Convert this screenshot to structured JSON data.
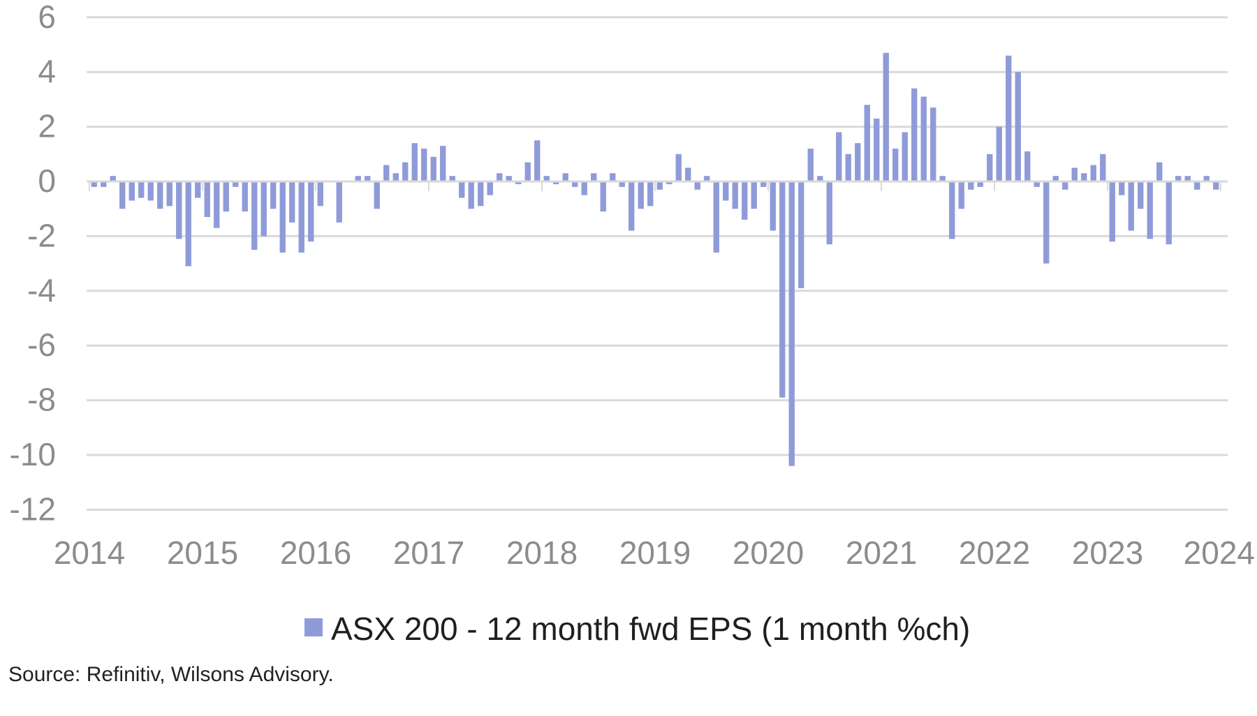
{
  "chart_data": {
    "type": "bar",
    "title": "",
    "xlabel": "",
    "ylabel": "",
    "ylim": [
      -12,
      6
    ],
    "yticks": [
      6,
      4,
      2,
      0,
      -2,
      -4,
      -6,
      -8,
      -10,
      -12
    ],
    "xlim": [
      2014,
      2024
    ],
    "xticks": [
      "2014",
      "2015",
      "2016",
      "2017",
      "2018",
      "2019",
      "2020",
      "2021",
      "2022",
      "2023",
      "2024"
    ],
    "grid": true,
    "legend_position": "bottom",
    "bar_color": "#8f9bd9",
    "series": [
      {
        "name": "ASX 200 - 12 month fwd EPS (1 month %ch)",
        "x": [
          "2014-01",
          "2014-02",
          "2014-03",
          "2014-04",
          "2014-05",
          "2014-06",
          "2014-07",
          "2014-08",
          "2014-09",
          "2014-10",
          "2014-11",
          "2014-12",
          "2015-01",
          "2015-02",
          "2015-03",
          "2015-04",
          "2015-05",
          "2015-06",
          "2015-07",
          "2015-08",
          "2015-09",
          "2015-10",
          "2015-11",
          "2015-12",
          "2016-01",
          "2016-02",
          "2016-03",
          "2016-04",
          "2016-05",
          "2016-06",
          "2016-07",
          "2016-08",
          "2016-09",
          "2016-10",
          "2016-11",
          "2016-12",
          "2017-01",
          "2017-02",
          "2017-03",
          "2017-04",
          "2017-05",
          "2017-06",
          "2017-07",
          "2017-08",
          "2017-09",
          "2017-10",
          "2017-11",
          "2017-12",
          "2018-01",
          "2018-02",
          "2018-03",
          "2018-04",
          "2018-05",
          "2018-06",
          "2018-07",
          "2018-08",
          "2018-09",
          "2018-10",
          "2018-11",
          "2018-12",
          "2019-01",
          "2019-02",
          "2019-03",
          "2019-04",
          "2019-05",
          "2019-06",
          "2019-07",
          "2019-08",
          "2019-09",
          "2019-10",
          "2019-11",
          "2019-12",
          "2020-01",
          "2020-02",
          "2020-03",
          "2020-04",
          "2020-05",
          "2020-06",
          "2020-07",
          "2020-08",
          "2020-09",
          "2020-10",
          "2020-11",
          "2020-12",
          "2021-01",
          "2021-02",
          "2021-03",
          "2021-04",
          "2021-05",
          "2021-06",
          "2021-07",
          "2021-08",
          "2021-09",
          "2021-10",
          "2021-11",
          "2021-12",
          "2022-01",
          "2022-02",
          "2022-03",
          "2022-04",
          "2022-05",
          "2022-06",
          "2022-07",
          "2022-08",
          "2022-09",
          "2022-10",
          "2022-11",
          "2022-12",
          "2023-01",
          "2023-02",
          "2023-03",
          "2023-04",
          "2023-05",
          "2023-06",
          "2023-07",
          "2023-08",
          "2023-09",
          "2023-10",
          "2023-11",
          "2023-12"
        ],
        "values": [
          -0.2,
          -0.2,
          0.2,
          -1.0,
          -0.7,
          -0.6,
          -0.7,
          -1.0,
          -0.9,
          -2.1,
          -3.1,
          -0.6,
          -1.3,
          -1.7,
          -1.1,
          -0.2,
          -1.1,
          -2.5,
          -2.0,
          -1.0,
          -2.6,
          -1.5,
          -2.6,
          -2.2,
          -0.9,
          0.0,
          -1.5,
          0.0,
          0.2,
          0.2,
          -1.0,
          0.6,
          0.3,
          0.7,
          1.4,
          1.2,
          0.9,
          1.3,
          0.2,
          -0.6,
          -1.0,
          -0.9,
          -0.5,
          0.3,
          0.2,
          -0.1,
          0.7,
          1.5,
          0.2,
          -0.1,
          0.3,
          -0.2,
          -0.5,
          0.3,
          -1.1,
          0.3,
          -0.2,
          -1.8,
          -1.0,
          -0.9,
          -0.3,
          -0.1,
          1.0,
          0.5,
          -0.3,
          0.2,
          -2.6,
          -0.7,
          -1.0,
          -1.4,
          -1.0,
          -0.2,
          -1.8,
          -7.9,
          -10.4,
          -3.9,
          1.2,
          0.2,
          -2.3,
          1.8,
          1.0,
          1.4,
          2.8,
          2.3,
          4.7,
          1.2,
          1.8,
          3.4,
          3.1,
          2.7,
          0.2,
          -2.1,
          -1.0,
          -0.3,
          -0.2,
          1.0,
          2.0,
          4.6,
          4.0,
          1.1,
          -0.2,
          -3.0,
          0.2,
          -0.3,
          0.5,
          0.3,
          0.6,
          1.0,
          -2.2,
          -0.5,
          -1.8,
          -1.0,
          -2.1,
          0.7,
          -2.3,
          0.2,
          0.2,
          -0.3,
          0.2,
          -0.3
        ]
      }
    ]
  },
  "legend": {
    "label": "ASX 200 - 12 month fwd EPS (1 month %ch)",
    "swatch_color": "#8f9bd9"
  },
  "source": "Source: Refinitiv, Wilsons Advisory."
}
